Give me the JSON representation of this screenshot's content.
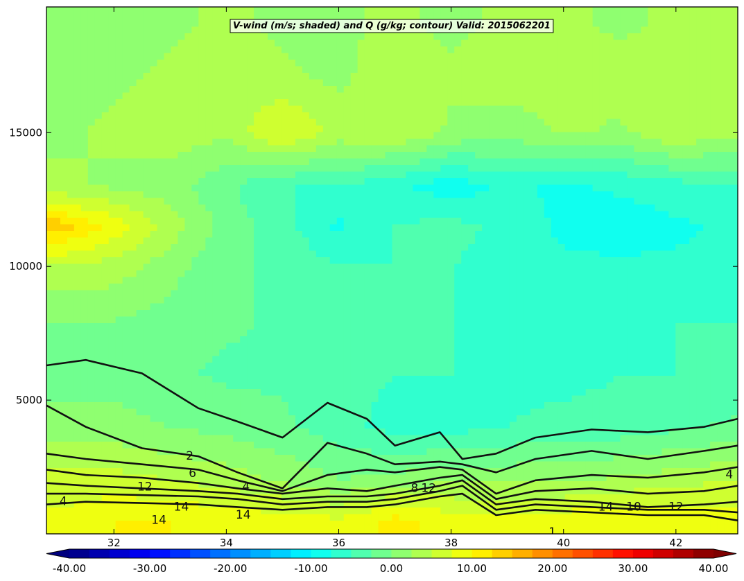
{
  "chart_data": {
    "type": "heatmap",
    "title": "V-wind (m/s; shaded) and Q (g/kg; contour) Valid: 2015062201",
    "xlabel": "",
    "ylabel": "",
    "xlim": [
      30.8,
      43.1
    ],
    "ylim": [
      0,
      19700
    ],
    "x_ticks": [
      "32",
      "34",
      "36",
      "38",
      "40",
      "42"
    ],
    "x_tick_values": [
      32,
      34,
      36,
      38,
      40,
      42
    ],
    "y_ticks": [
      "5000",
      "10000",
      "15000"
    ],
    "y_tick_values": [
      5000,
      10000,
      15000
    ],
    "grid": false,
    "shaded_variable": {
      "name": "V-wind (m/s)",
      "colormap": "jet",
      "range": [
        -40,
        40
      ],
      "colorbar_ticks": [
        "-40.00",
        "-30.00",
        "-20.00",
        "-10.00",
        "0.00",
        "10.00",
        "20.00",
        "30.00",
        "40.00"
      ],
      "colorbar_values": [
        -40,
        -30,
        -20,
        -10,
        0,
        10,
        20,
        30,
        40
      ],
      "colorbar_extend": "both",
      "field_x": [
        31.0,
        32.0,
        33.0,
        34.0,
        35.0,
        36.0,
        37.0,
        38.0,
        39.0,
        40.0,
        41.0,
        42.0,
        43.0
      ],
      "field_y": [
        500,
        2000,
        4000,
        6000,
        8000,
        10000,
        11500,
        13000,
        15000,
        17000,
        19000
      ],
      "field_values": [
        [
          8,
          10,
          10,
          9,
          9,
          8,
          11,
          9,
          8,
          9,
          10,
          9,
          9
        ],
        [
          6,
          6,
          5,
          4,
          2,
          0,
          1,
          2,
          2,
          2,
          3,
          4,
          5
        ],
        [
          1,
          1,
          0,
          -1,
          -2,
          -4,
          -6,
          -6,
          -5,
          -4,
          -4,
          -3,
          -2
        ],
        [
          -1,
          -1,
          -2,
          -3,
          -3,
          -4,
          -5,
          -5,
          -6,
          -6,
          -5,
          -5,
          -5
        ],
        [
          0,
          0,
          -1,
          -2,
          -3,
          -4,
          -4,
          -5,
          -6,
          -7,
          -6,
          -5,
          -5
        ],
        [
          5,
          4,
          1,
          -2,
          -3,
          -5,
          -5,
          -5,
          -6,
          -7,
          -7,
          -7,
          -7
        ],
        [
          14,
          9,
          4,
          -1,
          -4,
          -8,
          -5,
          -4,
          -6,
          -8,
          -9,
          -8,
          -7
        ],
        [
          3,
          2,
          1,
          -2,
          -5,
          -5,
          -7,
          -9,
          -7,
          -8,
          -7,
          -6,
          -5
        ],
        [
          2,
          3,
          4,
          3,
          8,
          4,
          5,
          2,
          1,
          3,
          2,
          5,
          3
        ],
        [
          2,
          2,
          3,
          4,
          3,
          2,
          4,
          3,
          4,
          3,
          4,
          4,
          3
        ],
        [
          1,
          2,
          2,
          3,
          2,
          2,
          3,
          2,
          3,
          3,
          2,
          3,
          4
        ]
      ]
    },
    "contour_variable": {
      "name": "Q (g/kg)",
      "levels": [
        2,
        4,
        6,
        8,
        10,
        12,
        14
      ],
      "lines": [
        {
          "level": 2,
          "x": [
            30.8,
            31.5,
            32.5,
            33.5,
            34.2,
            35.0,
            35.8,
            36.5,
            37.0,
            37.8,
            38.2,
            38.8,
            39.5,
            40.5,
            41.5,
            42.5,
            43.1
          ],
          "y": [
            6300,
            6500,
            6000,
            4700,
            4200,
            3600,
            4900,
            4300,
            3300,
            3800,
            2800,
            3000,
            3600,
            3900,
            3800,
            4000,
            4300
          ]
        },
        {
          "level": 4,
          "x": [
            30.8,
            31.5,
            32.5,
            33.5,
            34.2,
            35.0,
            35.8,
            36.5,
            37.0,
            37.8,
            38.2,
            38.8,
            39.5,
            40.5,
            41.5,
            42.5,
            43.1
          ],
          "y": [
            4800,
            4000,
            3200,
            2900,
            2300,
            1700,
            3400,
            3000,
            2600,
            2700,
            2600,
            2300,
            2800,
            3100,
            2800,
            3100,
            3300
          ]
        },
        {
          "level": 6,
          "x": [
            30.8,
            31.5,
            32.5,
            33.5,
            34.2,
            35.0,
            35.8,
            36.5,
            37.0,
            37.8,
            38.2,
            38.8,
            39.5,
            40.5,
            41.5,
            42.5,
            43.1
          ],
          "y": [
            3000,
            2800,
            2600,
            2400,
            2000,
            1600,
            2200,
            2400,
            2300,
            2500,
            2400,
            1500,
            2000,
            2200,
            2100,
            2300,
            2500
          ]
        },
        {
          "level": 8,
          "x": [
            30.8,
            31.5,
            32.5,
            33.5,
            34.2,
            35.0,
            35.8,
            36.5,
            37.0,
            37.8,
            38.2,
            38.8,
            39.5,
            40.5,
            41.5,
            42.5,
            43.1
          ],
          "y": [
            2400,
            2200,
            2100,
            1900,
            1700,
            1500,
            1700,
            1600,
            1800,
            2100,
            2200,
            1300,
            1600,
            1700,
            1500,
            1600,
            1800
          ]
        },
        {
          "level": 10,
          "x": [
            30.8,
            31.5,
            32.5,
            33.5,
            34.2,
            35.0,
            35.8,
            36.5,
            37.0,
            37.8,
            38.2,
            38.8,
            39.5,
            40.5,
            41.5,
            42.5,
            43.1
          ],
          "y": [
            1900,
            1800,
            1700,
            1600,
            1500,
            1300,
            1400,
            1400,
            1500,
            1800,
            2000,
            1100,
            1300,
            1200,
            1000,
            1100,
            1200
          ]
        },
        {
          "level": 12,
          "x": [
            30.8,
            31.5,
            32.5,
            33.5,
            34.2,
            35.0,
            35.8,
            36.5,
            37.0,
            37.8,
            38.2,
            38.8,
            39.5,
            40.5,
            41.5,
            42.5,
            43.1
          ],
          "y": [
            1500,
            1500,
            1450,
            1400,
            1300,
            1100,
            1200,
            1200,
            1300,
            1600,
            1800,
            900,
            1100,
            1000,
            900,
            900,
            800
          ]
        },
        {
          "level": 14,
          "x": [
            30.8,
            31.5,
            32.5,
            33.5,
            34.2,
            35.0,
            35.8,
            36.5,
            37.0,
            37.8,
            38.2,
            38.8,
            39.5,
            40.5,
            41.5,
            42.5,
            43.1
          ],
          "y": [
            1100,
            1200,
            1150,
            1100,
            1000,
            900,
            1000,
            1000,
            1100,
            1400,
            1500,
            700,
            900,
            800,
            700,
            700,
            500
          ]
        }
      ],
      "labels": [
        {
          "text": "2",
          "x": 33.35,
          "y": 2900
        },
        {
          "text": "6",
          "x": 33.4,
          "y": 2250
        },
        {
          "text": "4",
          "x": 34.35,
          "y": 1750
        },
        {
          "text": "8",
          "x": 37.35,
          "y": 1700
        },
        {
          "text": "12",
          "x": 32.55,
          "y": 1750
        },
        {
          "text": "12",
          "x": 37.6,
          "y": 1700
        },
        {
          "text": "4",
          "x": 31.1,
          "y": 1200
        },
        {
          "text": "14",
          "x": 32.8,
          "y": 500
        },
        {
          "text": "14",
          "x": 33.2,
          "y": 1000
        },
        {
          "text": "14",
          "x": 34.3,
          "y": 700
        },
        {
          "text": "14",
          "x": 40.75,
          "y": 1000
        },
        {
          "text": "10",
          "x": 41.25,
          "y": 1000
        },
        {
          "text": "12",
          "x": 42.0,
          "y": 1000
        },
        {
          "text": "4",
          "x": 42.95,
          "y": 2200
        },
        {
          "text": "1",
          "x": 39.8,
          "y": 50
        }
      ]
    }
  }
}
